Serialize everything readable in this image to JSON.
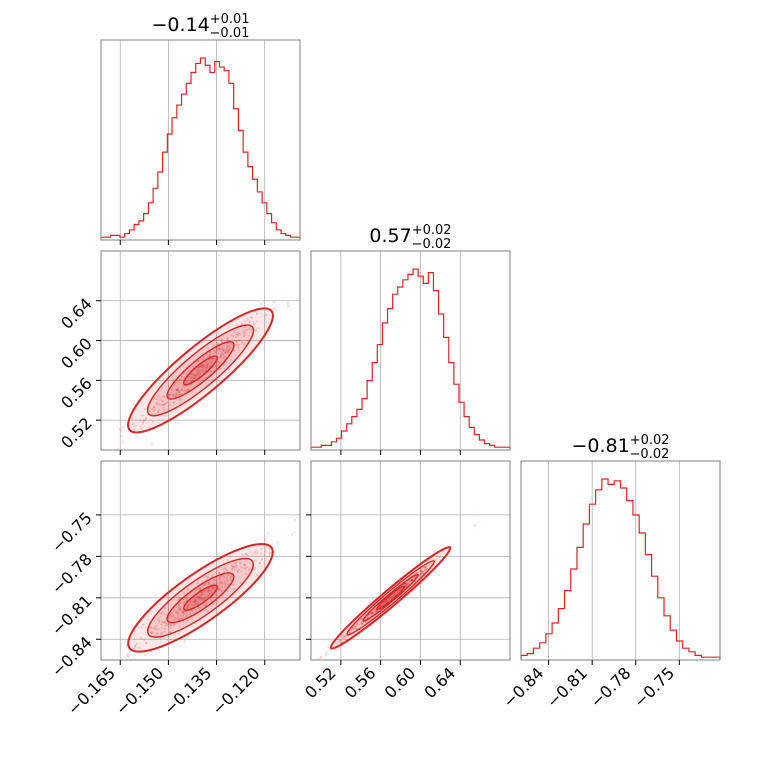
{
  "chart_data": {
    "type": "corner",
    "color": "#d62728",
    "grid": true,
    "parameters": [
      {
        "title": {
          "median": "−0.14",
          "plus": "+0.01",
          "minus": "−0.01"
        },
        "ticks": [
          -0.165,
          -0.15,
          -0.135,
          -0.12
        ],
        "tick_labels": [
          "−0.165",
          "−0.150",
          "−0.135",
          "−0.120"
        ],
        "range": [
          -0.171,
          -0.109
        ],
        "y_range": [
          0.498,
          0.678
        ]
      },
      {
        "title": {
          "median": "0.57",
          "plus": "+0.02",
          "minus": "−0.02"
        },
        "ticks": [
          0.52,
          0.56,
          0.6,
          0.64
        ],
        "tick_labels": [
          "0.52",
          "0.56",
          "0.60",
          "0.64"
        ],
        "range": [
          0.49,
          0.69
        ],
        "y_range": [
          0.49,
          0.69
        ]
      },
      {
        "title": {
          "median": "−0.81",
          "plus": "+0.02",
          "minus": "−0.02"
        },
        "ticks": [
          -0.84,
          -0.81,
          -0.78,
          -0.75
        ],
        "tick_labels": [
          "−0.84",
          "−0.81",
          "−0.78",
          "−0.75"
        ],
        "range": [
          -0.859,
          -0.722
        ],
        "y_range": [
          -0.855,
          -0.711
        ]
      }
    ],
    "histograms": [
      {
        "counts": [
          1,
          1,
          2,
          2,
          1,
          3,
          5,
          8,
          10,
          14,
          20,
          28,
          37,
          48,
          58,
          67,
          74,
          80,
          86,
          92,
          97,
          100,
          96,
          92,
          98,
          95,
          93,
          86,
          72,
          60,
          48,
          40,
          33,
          26,
          20,
          14,
          9,
          5,
          3,
          2,
          1,
          1
        ]
      },
      {
        "counts": [
          1,
          1,
          2,
          2,
          4,
          6,
          10,
          14,
          18,
          22,
          28,
          38,
          48,
          58,
          70,
          78,
          86,
          90,
          94,
          97,
          100,
          96,
          92,
          98,
          88,
          75,
          62,
          48,
          36,
          26,
          18,
          12,
          8,
          5,
          3,
          2,
          1,
          1,
          1
        ]
      },
      {
        "counts": [
          2,
          3,
          6,
          9,
          14,
          20,
          28,
          38,
          50,
          62,
          75,
          86,
          94,
          100,
          97,
          99,
          95,
          88,
          80,
          70,
          58,
          46,
          34,
          24,
          16,
          10,
          6,
          4,
          2,
          1,
          1,
          1
        ]
      }
    ],
    "correlations": [
      {
        "x": 0,
        "y": 1,
        "slope": 3.05,
        "width": 0.008
      },
      {
        "x": 0,
        "y": 2,
        "slope": 2.5,
        "width": 0.006
      },
      {
        "x": 1,
        "y": 2,
        "slope": 0.8,
        "width": 0.002
      }
    ]
  }
}
